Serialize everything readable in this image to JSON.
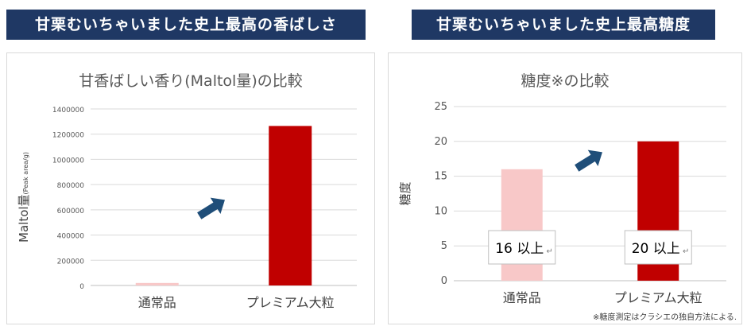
{
  "banners": {
    "left": "甘栗むいちゃいました史上最高の香ばしさ",
    "right": "甘栗むいちゃいました史上最高糖度"
  },
  "chart_data": [
    {
      "type": "bar",
      "title": "甘香ばしい香り(Maltol量)の比較",
      "ylabel_main": "Maltol量",
      "ylabel_sub": "(Peak area/g)",
      "categories": [
        "通常品",
        "プレミアム大粒"
      ],
      "values": [
        20000,
        1265000
      ],
      "ylim": [
        0,
        1400000
      ],
      "yticks": [
        0,
        200000,
        400000,
        600000,
        800000,
        1000000,
        1200000,
        1400000
      ],
      "colors": [
        "#f8c8c8",
        "#c00000"
      ],
      "grid": true
    },
    {
      "type": "bar",
      "title": "糖度※の比較",
      "ylabel": "糖度",
      "categories": [
        "通常品",
        "プレミアム大粒"
      ],
      "values": [
        16,
        20
      ],
      "ylim": [
        0,
        25
      ],
      "yticks": [
        0,
        5,
        10,
        15,
        20,
        25
      ],
      "colors": [
        "#f8c8c8",
        "#c00000"
      ],
      "data_labels": [
        "16 以上",
        "20 以上"
      ],
      "grid": true,
      "footnote": "※糖度測定はクラシエの独自方法による."
    }
  ],
  "colors": {
    "banner": "#1f3864",
    "arrow": "#1f4e79"
  }
}
